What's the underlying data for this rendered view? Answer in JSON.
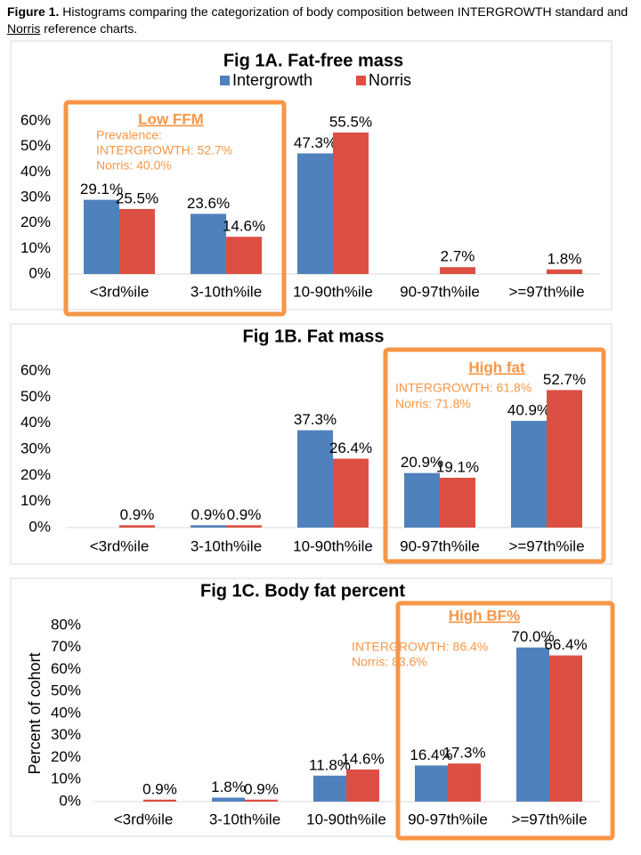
{
  "caption": {
    "label": "Figure 1.",
    "text_before": " Histograms comparing the categorization of body composition between INTERGROWTH standard and ",
    "norris": "Norris",
    "text_after": " reference charts."
  },
  "colors": {
    "intergrowth": "#4f81bd",
    "norris": "#dd4f43",
    "highlight": "#f79646",
    "axis": "#d9d9d9"
  },
  "chart_data": [
    {
      "type": "bar",
      "title": "Fig 1A. Fat-free mass",
      "categories": [
        "<3rd%ile",
        "3-10th%ile",
        "10-90th%ile",
        "90-97th%ile",
        ">=97th%ile"
      ],
      "series": [
        {
          "name": "Intergrowth",
          "values": [
            29.1,
            23.6,
            47.3,
            0,
            0
          ],
          "labels": [
            "29.1%",
            "23.6%",
            "47.3%",
            "",
            ""
          ]
        },
        {
          "name": "Norris",
          "values": [
            25.5,
            14.6,
            55.5,
            2.7,
            1.8
          ],
          "labels": [
            "25.5%",
            "14.6%",
            "55.5%",
            "2.7%",
            "1.8%"
          ]
        }
      ],
      "yticks": [
        "0%",
        "10%",
        "20%",
        "30%",
        "40%",
        "50%",
        "60%"
      ],
      "ylim": [
        0,
        60
      ],
      "ylabel": "",
      "legend": "top",
      "grid": false,
      "highlight": {
        "title": "Low FFM",
        "lines": [
          "Prevalence:",
          "INTERGROWTH: 52.7%",
          "Norris: 40.0%"
        ],
        "categories": [
          0,
          1
        ]
      }
    },
    {
      "type": "bar",
      "title": "Fig 1B. Fat mass",
      "categories": [
        "<3rd%ile",
        "3-10th%ile",
        "10-90th%ile",
        "90-97th%ile",
        ">=97th%ile"
      ],
      "series": [
        {
          "name": "Intergrowth",
          "values": [
            0,
            0.9,
            37.3,
            20.9,
            40.9
          ],
          "labels": [
            "",
            "0.9%",
            "37.3%",
            "20.9%",
            "40.9%"
          ]
        },
        {
          "name": "Norris",
          "values": [
            0.9,
            0.9,
            26.4,
            19.1,
            52.7
          ],
          "labels": [
            "0.9%",
            "0.9%",
            "26.4%",
            "19.1%",
            "52.7%"
          ]
        }
      ],
      "yticks": [
        "0%",
        "10%",
        "20%",
        "30%",
        "40%",
        "50%",
        "60%"
      ],
      "ylim": [
        0,
        60
      ],
      "ylabel": "",
      "grid": false,
      "highlight": {
        "title": "High fat",
        "lines": [
          "INTERGROWTH: 61.8%",
          "Norris: 71.8%"
        ],
        "categories": [
          3,
          4
        ]
      }
    },
    {
      "type": "bar",
      "title": "Fig 1C. Body fat percent",
      "categories": [
        "<3rd%ile",
        "3-10th%ile",
        "10-90th%ile",
        "90-97th%ile",
        ">=97th%ile"
      ],
      "series": [
        {
          "name": "Intergrowth",
          "values": [
            0,
            1.8,
            11.8,
            16.4,
            70.0
          ],
          "labels": [
            "",
            "1.8%",
            "11.8%",
            "16.4%",
            "70.0%"
          ]
        },
        {
          "name": "Norris",
          "values": [
            0.9,
            0.9,
            14.6,
            17.3,
            66.4
          ],
          "labels": [
            "0.9%",
            "0.9%",
            "14.6%",
            "17.3%",
            "66.4%"
          ]
        }
      ],
      "yticks": [
        "0%",
        "10%",
        "20%",
        "30%",
        "40%",
        "50%",
        "60%",
        "70%",
        "80%"
      ],
      "ylim": [
        0,
        80
      ],
      "ylabel": "Percent of cohort",
      "grid": false,
      "highlight": {
        "title": "High BF%",
        "lines": [
          "INTERGROWTH: 86.4%",
          "Norris: 83.6%"
        ],
        "categories": [
          3,
          4
        ]
      }
    }
  ]
}
